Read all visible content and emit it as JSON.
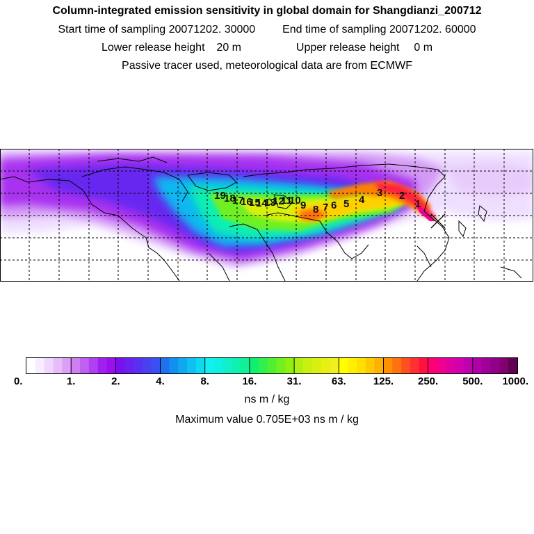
{
  "header": {
    "title": "Column-integrated emission sensitivity in global domain for Shangdianzi_200712",
    "start_label": "Start time of sampling",
    "start_value": "20071202. 30000",
    "end_label": "End time of sampling",
    "end_value": "20071202. 60000",
    "lower_label": "Lower release height",
    "lower_value": "20 m",
    "upper_label": "Upper release height",
    "upper_value": "0 m",
    "note": "Passive tracer used, meteorological data are from ECMWF"
  },
  "map": {
    "release_site": "Shangdianzi",
    "trajectory_labels": [
      "19",
      "18",
      "17",
      "16",
      "15",
      "14",
      "13",
      "12",
      "11",
      "10",
      "9",
      "8",
      "7",
      "6",
      "5",
      "4",
      "3",
      "2",
      "1"
    ]
  },
  "colorbar": {
    "tick_labels": [
      "0.",
      "1.",
      "2.",
      "4.",
      "8.",
      "16.",
      "31.",
      "63.",
      "125.",
      "250.",
      "500.",
      "1000."
    ],
    "unit": "ns m / kg",
    "colors": [
      "#ffffff",
      "#f8ecff",
      "#f0d6ff",
      "#e6bcfa",
      "#d9a0f5",
      "#cf7ff2",
      "#c060f0",
      "#b040f0",
      "#a020f0",
      "#9a10f0",
      "#7a10f0",
      "#6a20f0",
      "#5a30f0",
      "#4a40f0",
      "#3a50f0",
      "#2070f0",
      "#1090f0",
      "#10a8f0",
      "#10c0f0",
      "#10d8f0",
      "#10f0f0",
      "#10f0e0",
      "#10f0c8",
      "#10f0b0",
      "#10f098",
      "#10f070",
      "#30f050",
      "#50f030",
      "#70f020",
      "#90f010",
      "#b0f010",
      "#c8f010",
      "#d8f010",
      "#e8f010",
      "#f0f020",
      "#ffff00",
      "#fff000",
      "#ffe000",
      "#ffc800",
      "#ffb000",
      "#ff9000",
      "#ff7010",
      "#ff5020",
      "#ff3030",
      "#ff1040",
      "#ff0070",
      "#f00090",
      "#e000a0",
      "#d000b0",
      "#c000b0",
      "#b000a8",
      "#a00098",
      "#900088",
      "#800070",
      "#600050"
    ]
  },
  "max_label": "Maximum value",
  "max_value": "0.705E+03 ns m / kg"
}
